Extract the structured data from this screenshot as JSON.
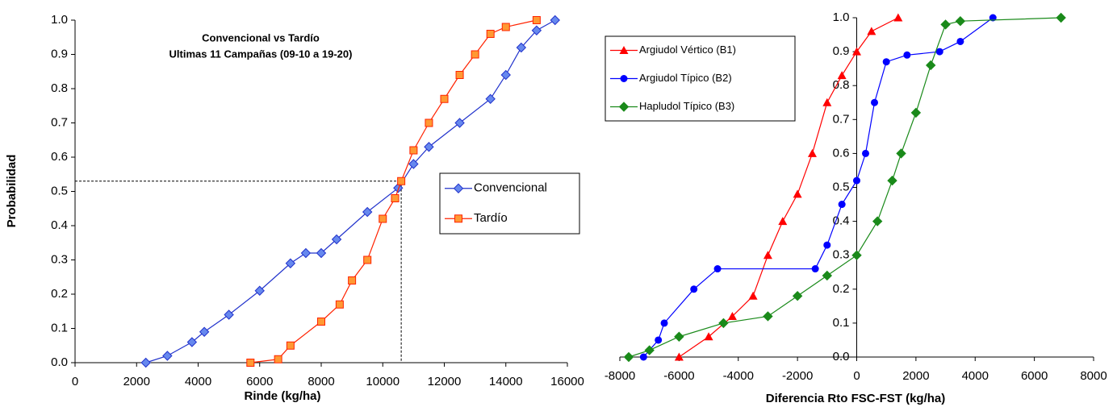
{
  "chart_data": [
    {
      "type": "line",
      "title": "Convencional vs Tardío",
      "subtitle": "Ultimas 11 Campañas (09-10 a 19-20)",
      "x_label": "Rinde (kg/ha)",
      "y_label": "Probabilidad",
      "xlim": [
        0,
        16000
      ],
      "xticks": [
        0,
        2000,
        4000,
        6000,
        8000,
        10000,
        12000,
        14000,
        16000
      ],
      "ylim": [
        0,
        1
      ],
      "yticks": [
        {
          "value": 0,
          "label": "0.0"
        },
        0.1,
        0.2,
        0.3,
        0.4,
        0.5,
        0.6,
        0.7,
        0.8,
        0.9,
        {
          "value": 1,
          "label": "1.0"
        }
      ],
      "legend": "right",
      "grid": false,
      "reference_lines": {
        "x": 10600,
        "y": 0.53
      },
      "series": [
        {
          "name": "Convencional",
          "color": "#2233cc",
          "marker": "diamond",
          "x": [
            2300,
            3000,
            3800,
            4200,
            5000,
            6000,
            7000,
            7500,
            8000,
            8500,
            9500,
            10500,
            11000,
            11500,
            12500,
            13500,
            14000,
            14500,
            15000,
            15600
          ],
          "values": [
            0,
            0.02,
            0.06,
            0.09,
            0.14,
            0.21,
            0.29,
            0.32,
            0.32,
            0.36,
            0.44,
            0.51,
            0.58,
            0.63,
            0.7,
            0.77,
            0.84,
            0.92,
            0.97,
            1.0
          ]
        },
        {
          "name": "Tardío",
          "color": "#ff2200",
          "marker": "square",
          "x": [
            5700,
            6600,
            7000,
            8000,
            8600,
            9000,
            9500,
            10000,
            10400,
            10600,
            11000,
            11500,
            12000,
            12500,
            13000,
            13500,
            14000,
            15000
          ],
          "values": [
            0,
            0.01,
            0.05,
            0.12,
            0.17,
            0.24,
            0.3,
            0.42,
            0.48,
            0.53,
            0.62,
            0.7,
            0.77,
            0.84,
            0.9,
            0.96,
            0.98,
            1.0
          ]
        }
      ]
    },
    {
      "type": "line",
      "x_label": "Diferencia Rto FSC-FST (kg/ha)",
      "xlim": [
        -8000,
        8000
      ],
      "xticks": [
        -8000,
        -6000,
        -4000,
        -2000,
        0,
        2000,
        4000,
        6000,
        8000
      ],
      "ylim": [
        0,
        1
      ],
      "yticks": [
        {
          "value": 0,
          "label": "0.0"
        },
        0.1,
        0.2,
        0.3,
        0.4,
        0.5,
        0.6,
        0.7,
        0.8,
        0.9,
        {
          "value": 1,
          "label": "1.0"
        }
      ],
      "legend": "upper left",
      "grid": false,
      "series": [
        {
          "name": "Argiudol Vértico (B1)",
          "color": "#ff0000",
          "marker": "triangle",
          "x": [
            -6000,
            -5000,
            -4200,
            -3500,
            -3000,
            -2500,
            -2000,
            -1500,
            -1000,
            -500,
            0,
            500,
            1400
          ],
          "values": [
            0,
            0.06,
            0.12,
            0.18,
            0.3,
            0.4,
            0.48,
            0.6,
            0.75,
            0.83,
            0.9,
            0.96,
            1.0
          ]
        },
        {
          "name": "Argiudol Típico (B2)",
          "color": "#0000ff",
          "marker": "circle",
          "x": [
            -7200,
            -6700,
            -6500,
            -5500,
            -4700,
            -1400,
            -1000,
            -500,
            0,
            300,
            600,
            1000,
            1700,
            2800,
            3500,
            4600
          ],
          "values": [
            0,
            0.05,
            0.1,
            0.2,
            0.26,
            0.26,
            0.33,
            0.45,
            0.52,
            0.6,
            0.75,
            0.87,
            0.89,
            0.9,
            0.93,
            1.0
          ]
        },
        {
          "name": "Hapludol Típico (B3)",
          "color": "#1a8a1a",
          "marker": "diamond",
          "x": [
            -7700,
            -7000,
            -6000,
            -4500,
            -3000,
            -2000,
            -1000,
            0,
            700,
            1200,
            1500,
            2000,
            2500,
            3000,
            3500,
            6900
          ],
          "values": [
            0,
            0.02,
            0.06,
            0.1,
            0.12,
            0.18,
            0.24,
            0.3,
            0.4,
            0.52,
            0.6,
            0.72,
            0.86,
            0.98,
            0.99,
            1.0
          ]
        }
      ]
    }
  ]
}
